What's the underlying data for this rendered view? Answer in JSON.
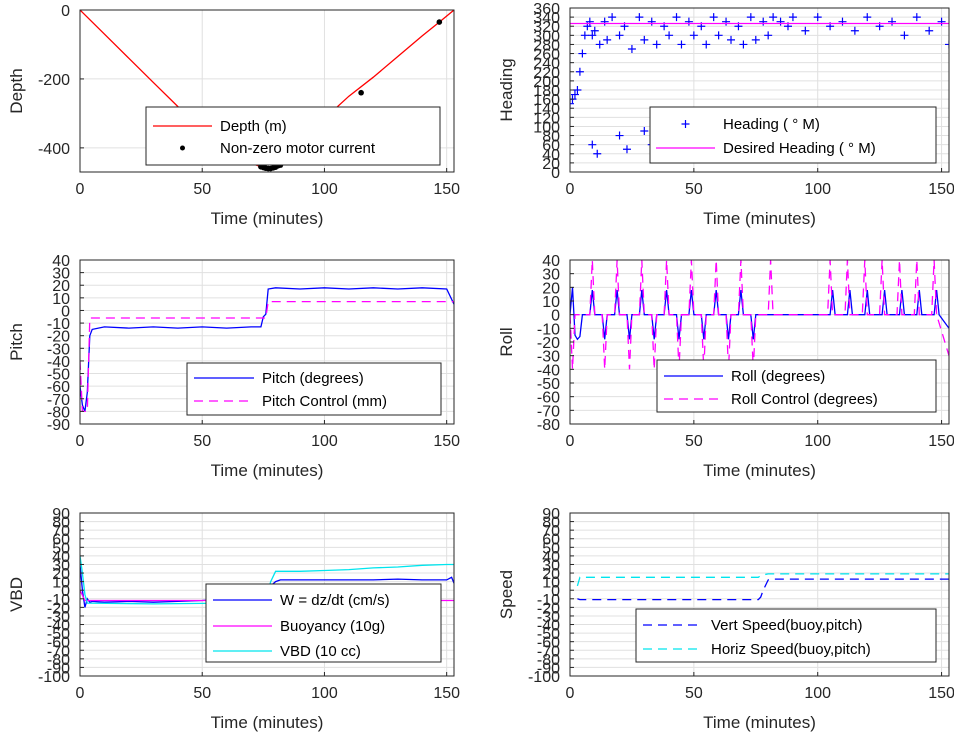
{
  "chart_data": [
    {
      "type": "line",
      "ylabel": "Depth",
      "xlabel": "Time (minutes)",
      "xlim": [
        0,
        153
      ],
      "ylim": [
        -470,
        0
      ],
      "xticks": [
        0,
        50,
        100,
        150
      ],
      "yticks": [
        0,
        -200,
        -400
      ],
      "grid": true,
      "legend_position": "lower-right",
      "series": [
        {
          "name": "Depth (m)",
          "style": "solid",
          "color": "#ff0000",
          "x": [
            0,
            10,
            20,
            30,
            40,
            50,
            60,
            70,
            75,
            78,
            80,
            85,
            90,
            100,
            110,
            120,
            130,
            140,
            147,
            153
          ],
          "y": [
            0,
            -70,
            -140,
            -210,
            -280,
            -345,
            -400,
            -445,
            -457,
            -460,
            -455,
            -420,
            -385,
            -315,
            -250,
            -195,
            -135,
            -75,
            -35,
            0
          ]
        },
        {
          "name": "Non-zero motor current",
          "style": "markers",
          "color": "#000000",
          "x": [
            74,
            75,
            76,
            77,
            78,
            79,
            80,
            81,
            82,
            115,
            147
          ],
          "y": [
            -455,
            -457,
            -459,
            -460,
            -460,
            -458,
            -456,
            -452,
            -450,
            -240,
            -35
          ]
        }
      ]
    },
    {
      "type": "scatter",
      "ylabel": "Heading",
      "xlabel": "Time (minutes)",
      "xlim": [
        0,
        153
      ],
      "ylim": [
        0,
        360
      ],
      "xticks": [
        0,
        50,
        100,
        150
      ],
      "yticks": [
        0,
        20,
        40,
        60,
        80,
        100,
        120,
        140,
        160,
        180,
        200,
        220,
        240,
        260,
        280,
        300,
        320,
        340,
        360
      ],
      "grid": true,
      "legend_position": "lower-right",
      "series": [
        {
          "name": "Heading (  ° M)",
          "style": "plus",
          "color": "#0000ff",
          "x": [
            0,
            1,
            2,
            3,
            4,
            5,
            6,
            7,
            8,
            9,
            10,
            12,
            14,
            15,
            17,
            20,
            22,
            25,
            28,
            30,
            33,
            35,
            38,
            40,
            43,
            45,
            48,
            50,
            53,
            55,
            58,
            60,
            63,
            65,
            68,
            70,
            73,
            75,
            78,
            80,
            82,
            85,
            88,
            90,
            95,
            100,
            105,
            110,
            115,
            120,
            125,
            130,
            135,
            140,
            145,
            150,
            153,
            9,
            11,
            20,
            23,
            30,
            33,
            37,
            40,
            45,
            50,
            55,
            60,
            65,
            70,
            72,
            75,
            78
          ],
          "y": [
            150,
            160,
            170,
            180,
            220,
            260,
            300,
            320,
            330,
            300,
            310,
            280,
            330,
            290,
            340,
            300,
            320,
            270,
            340,
            290,
            330,
            280,
            320,
            300,
            340,
            280,
            330,
            300,
            320,
            280,
            340,
            300,
            330,
            290,
            320,
            280,
            340,
            290,
            330,
            300,
            340,
            330,
            320,
            340,
            310,
            340,
            320,
            330,
            310,
            340,
            320,
            330,
            300,
            340,
            310,
            330,
            280,
            60,
            40,
            80,
            50,
            90,
            60,
            110,
            40,
            80,
            60,
            100,
            50,
            80,
            90,
            100,
            120,
            80
          ]
        },
        {
          "name": "Desired Heading (    ° M)",
          "style": "solid",
          "color": "#ff00ff",
          "x": [
            0,
            153
          ],
          "y": [
            326,
            326
          ]
        }
      ]
    },
    {
      "type": "line",
      "ylabel": "Pitch",
      "xlabel": "Time (minutes)",
      "xlim": [
        0,
        153
      ],
      "ylim": [
        -90,
        40
      ],
      "xticks": [
        0,
        50,
        100,
        150
      ],
      "yticks": [
        40,
        30,
        20,
        10,
        0,
        -10,
        -20,
        -30,
        -40,
        -50,
        -60,
        -70,
        -80,
        -90
      ],
      "grid": true,
      "legend_position": "lower-right",
      "series": [
        {
          "name": "Pitch (degrees)",
          "style": "solid",
          "color": "#0000ff",
          "x": [
            0,
            1,
            2,
            3,
            4,
            5,
            10,
            20,
            30,
            40,
            50,
            60,
            70,
            74,
            75,
            76,
            77,
            80,
            90,
            100,
            110,
            120,
            130,
            140,
            150,
            153
          ],
          "y": [
            -60,
            -75,
            -80,
            -65,
            -20,
            -15,
            -13,
            -14,
            -13,
            -14,
            -13,
            -14,
            -13,
            -13,
            -5,
            -3,
            17,
            18,
            17,
            18,
            17,
            18,
            17,
            18,
            17,
            5
          ]
        },
        {
          "name": "Pitch Control (mm)",
          "style": "dashed",
          "color": "#ff00ff",
          "x": [
            0,
            1,
            2,
            3,
            4,
            76,
            77,
            150,
            153
          ],
          "y": [
            -40,
            -80,
            -80,
            -80,
            -6,
            -6,
            7,
            7,
            7
          ]
        }
      ]
    },
    {
      "type": "line",
      "ylabel": "Roll",
      "xlabel": "Time (minutes)",
      "xlim": [
        0,
        153
      ],
      "ylim": [
        -80,
        40
      ],
      "xticks": [
        0,
        50,
        100,
        150
      ],
      "yticks": [
        40,
        30,
        20,
        10,
        0,
        -10,
        -20,
        -30,
        -40,
        -50,
        -60,
        -70,
        -80
      ],
      "grid": true,
      "legend_position": "lower-right",
      "series": [
        {
          "name": "Roll (degrees)",
          "style": "solid",
          "color": "#0000ff",
          "x": [
            0,
            1,
            2,
            3,
            4,
            5,
            8,
            9,
            10,
            13,
            14,
            15,
            18,
            19,
            20,
            23,
            24,
            25,
            28,
            29,
            30,
            33,
            34,
            35,
            38,
            39,
            40,
            43,
            44,
            45,
            48,
            49,
            50,
            53,
            54,
            55,
            58,
            59,
            60,
            63,
            64,
            65,
            68,
            69,
            70,
            73,
            74,
            75,
            80,
            90,
            100,
            105,
            106,
            107,
            112,
            113,
            114,
            119,
            120,
            121,
            126,
            127,
            128,
            133,
            134,
            135,
            140,
            141,
            142,
            147,
            148,
            149,
            153
          ],
          "y": [
            0,
            20,
            -15,
            -18,
            -16,
            0,
            0,
            18,
            0,
            0,
            -18,
            0,
            0,
            18,
            0,
            0,
            -18,
            0,
            0,
            18,
            0,
            0,
            -18,
            0,
            0,
            18,
            0,
            0,
            -18,
            0,
            0,
            18,
            0,
            0,
            -18,
            0,
            0,
            18,
            0,
            0,
            -18,
            0,
            0,
            18,
            0,
            0,
            -18,
            0,
            0,
            0,
            0,
            0,
            18,
            0,
            0,
            18,
            0,
            0,
            18,
            0,
            0,
            18,
            0,
            0,
            18,
            0,
            0,
            18,
            0,
            0,
            18,
            0,
            -10
          ]
        },
        {
          "name": "Roll Control (degrees)",
          "style": "dashed",
          "color": "#ff00ff",
          "x": [
            0,
            1,
            2,
            8,
            9,
            10,
            13,
            14,
            15,
            18,
            19,
            20,
            23,
            24,
            25,
            28,
            29,
            30,
            33,
            34,
            35,
            38,
            39,
            40,
            43,
            44,
            45,
            48,
            49,
            50,
            53,
            54,
            55,
            58,
            59,
            60,
            63,
            64,
            65,
            68,
            69,
            70,
            73,
            74,
            75,
            80,
            81,
            82,
            100,
            104,
            105,
            106,
            111,
            112,
            113,
            118,
            119,
            120,
            125,
            126,
            127,
            132,
            133,
            134,
            139,
            140,
            141,
            146,
            147,
            148,
            153
          ],
          "y": [
            0,
            -40,
            0,
            0,
            40,
            0,
            0,
            -40,
            0,
            0,
            40,
            0,
            0,
            -40,
            0,
            0,
            40,
            0,
            0,
            -40,
            0,
            0,
            40,
            0,
            0,
            -40,
            0,
            0,
            40,
            0,
            0,
            -40,
            0,
            0,
            40,
            0,
            0,
            -40,
            0,
            0,
            40,
            0,
            0,
            -40,
            0,
            0,
            40,
            0,
            0,
            0,
            40,
            0,
            0,
            40,
            0,
            0,
            40,
            0,
            0,
            40,
            0,
            0,
            40,
            0,
            0,
            40,
            0,
            0,
            40,
            0,
            -30
          ]
        }
      ]
    },
    {
      "type": "line",
      "ylabel": "VBD",
      "xlabel": "Time (minutes)",
      "xlim": [
        0,
        153
      ],
      "ylim": [
        -100,
        90
      ],
      "xticks": [
        0,
        50,
        100,
        150
      ],
      "yticks": [
        90,
        80,
        70,
        60,
        50,
        40,
        30,
        20,
        10,
        0,
        -10,
        -20,
        -30,
        -40,
        -50,
        -60,
        -70,
        -80,
        -90,
        -100
      ],
      "grid": true,
      "legend_position": "lower-right",
      "series": [
        {
          "name": "W = dz/dt (cm/s)",
          "style": "solid",
          "color": "#0000ff",
          "x": [
            0,
            1,
            2,
            3,
            4,
            5,
            10,
            20,
            30,
            40,
            50,
            60,
            70,
            75,
            78,
            80,
            82,
            90,
            100,
            110,
            120,
            130,
            140,
            150,
            152,
            153
          ],
          "y": [
            30,
            0,
            -20,
            -10,
            -14,
            -13,
            -14,
            -13,
            -14,
            -13,
            -12,
            -10,
            -8,
            -7,
            5,
            10,
            12,
            12,
            12,
            12,
            12,
            13,
            12,
            12,
            15,
            8
          ]
        },
        {
          "name": "Buoyancy (10g)",
          "style": "solid",
          "color": "#ff00ff",
          "x": [
            0,
            2,
            3,
            76,
            77,
            153
          ],
          "y": [
            0,
            -12,
            -12,
            -12,
            -12,
            -12
          ]
        },
        {
          "name": "VBD (10 cc)",
          "style": "solid",
          "color": "#00e5ee",
          "x": [
            0,
            1,
            2,
            3,
            30,
            60,
            74,
            76,
            78,
            80,
            90,
            100,
            110,
            120,
            130,
            140,
            150,
            153
          ],
          "y": [
            40,
            20,
            -5,
            -15,
            -16,
            -15,
            -12,
            -10,
            10,
            22,
            22,
            23,
            24,
            26,
            27,
            29,
            30,
            30
          ]
        }
      ]
    },
    {
      "type": "line",
      "ylabel": "Speed",
      "xlabel": "Time (minutes)",
      "xlim": [
        0,
        153
      ],
      "ylim": [
        -100,
        90
      ],
      "xticks": [
        0,
        50,
        100,
        150
      ],
      "yticks": [
        90,
        80,
        70,
        60,
        50,
        40,
        30,
        20,
        10,
        0,
        -10,
        -20,
        -30,
        -40,
        -50,
        -60,
        -70,
        -80,
        -90,
        -100
      ],
      "grid": true,
      "legend_position": "lower-right",
      "series": [
        {
          "name": "Vert Speed(buoy,pitch)",
          "style": "dashed",
          "color": "#0000ff",
          "x": [
            3,
            4,
            30,
            60,
            76,
            77,
            78,
            80,
            82,
            100,
            120,
            140,
            153
          ],
          "y": [
            -10,
            -11,
            -11,
            -11,
            -11,
            -8,
            0,
            12,
            13,
            13,
            13,
            13,
            13
          ]
        },
        {
          "name": "Horiz Speed(buoy,pitch)",
          "style": "dashed",
          "color": "#00e5ee",
          "x": [
            3,
            4,
            30,
            60,
            76,
            77,
            78,
            80,
            100,
            120,
            140,
            153
          ],
          "y": [
            5,
            15,
            15,
            15,
            15,
            17,
            18,
            19,
            19,
            19,
            19,
            19
          ]
        }
      ]
    }
  ]
}
